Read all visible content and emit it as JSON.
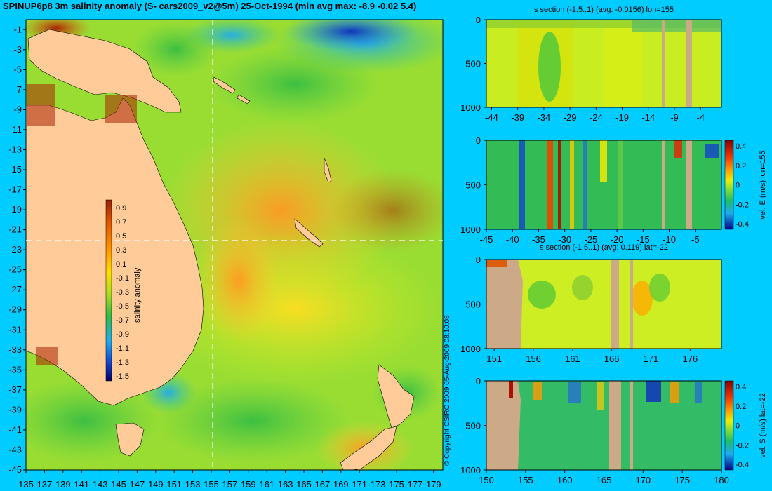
{
  "map": {
    "title": "SPINUP6p8 3m salinity anomaly (S- cars2009_v2@5m) 25-Oct-1994 (min avg max: -8.9 -0.02 5.4)",
    "colorbar_label": "salinity anomaly",
    "colorbar_ticks": [
      "0.9",
      "0.7",
      "0.5",
      "0.3",
      "0.1",
      "-0.1",
      "-0.3",
      "-0.5",
      "-0.7",
      "-0.9",
      "-1.1",
      "-1.3",
      "-1.5"
    ],
    "lon_ticks": [
      "135",
      "137",
      "139",
      "141",
      "143",
      "145",
      "147",
      "149",
      "151",
      "153",
      "155",
      "157",
      "159",
      "161",
      "163",
      "165",
      "167",
      "169",
      "171",
      "173",
      "175",
      "177",
      "179"
    ],
    "lat_ticks": [
      "-1",
      "-3",
      "-5",
      "-7",
      "-9",
      "-11",
      "-13",
      "-15",
      "-17",
      "-19",
      "-21",
      "-23",
      "-25",
      "-27",
      "-29",
      "-31",
      "-33",
      "-35",
      "-37",
      "-39",
      "-41",
      "-43",
      "-45"
    ],
    "section_lon": 155,
    "section_lat": -22
  },
  "copyright": "© Copyright CSIRO 2009   05-Aug-2009 08:10:08",
  "colors": {
    "background": "#00ccff",
    "land": "#ffcc99",
    "section_mask": "#ccaa88"
  },
  "panels": [
    {
      "title": "s section (-1.5..1) (avg: -0.0156) lon=155",
      "y_ticks": [
        "0",
        "500",
        "1000"
      ],
      "x_ticks": [
        "-44",
        "-39",
        "-34",
        "-29",
        "-24",
        "-19",
        "-14",
        "-9",
        "-4"
      ],
      "side_label": "",
      "colorbar_ticks": []
    },
    {
      "title": "",
      "y_ticks": [
        "0",
        "500",
        "1000"
      ],
      "x_ticks": [
        "-45",
        "-40",
        "-35",
        "-30",
        "-25",
        "-20",
        "-15",
        "-10",
        "-5"
      ],
      "side_label": "vel. E (m/s) lon=155",
      "colorbar_ticks": [
        "0.4",
        "0.2",
        "0",
        "-0.2",
        "-0.4"
      ]
    },
    {
      "title": "s section (-1.5..1) (avg: 0.119) lat=-22",
      "y_ticks": [
        "0",
        "500",
        "1000"
      ],
      "x_ticks": [
        "151",
        "156",
        "161",
        "166",
        "171",
        "176"
      ],
      "side_label": "",
      "colorbar_ticks": []
    },
    {
      "title": "",
      "y_ticks": [
        "0",
        "500",
        "1000"
      ],
      "x_ticks": [
        "150",
        "155",
        "160",
        "165",
        "170",
        "175",
        "180"
      ],
      "side_label": "vel. S (m/s) lat=-22",
      "colorbar_ticks": [
        "0.4",
        "0.2",
        "0",
        "-0.2",
        "-0.4"
      ]
    }
  ],
  "chart_data": [
    {
      "type": "heatmap",
      "title": "SPINUP6p8 3m salinity anomaly (S- cars2009_v2@5m) 25-Oct-1994 (min avg max: -8.9 -0.02 5.4)",
      "xlim": [
        135,
        180
      ],
      "ylim": [
        -45,
        0
      ],
      "colorbar": {
        "label": "salinity anomaly",
        "range": [
          -1.5,
          1
        ]
      },
      "min": -8.9,
      "avg": -0.02,
      "max": 5.4
    },
    {
      "type": "heatmap",
      "title": "s section (-1.5..1) (avg: -0.0156) lon=155",
      "xlim": [
        -45,
        0
      ],
      "ylim": [
        1000,
        0
      ],
      "avg": -0.0156,
      "range": [
        -1.5,
        1
      ]
    },
    {
      "type": "heatmap",
      "title": "",
      "xlim": [
        -45,
        0
      ],
      "ylim": [
        1000,
        0
      ],
      "colorbar": {
        "label": "vel. E (m/s) lon=155",
        "range": [
          -0.4,
          0.4
        ]
      }
    },
    {
      "type": "heatmap",
      "title": "s section (-1.5..1) (avg: 0.119) lat=-22",
      "xlim": [
        150,
        180
      ],
      "ylim": [
        1000,
        0
      ],
      "avg": 0.119,
      "range": [
        -1.5,
        1
      ]
    },
    {
      "type": "heatmap",
      "title": "",
      "xlim": [
        150,
        180
      ],
      "ylim": [
        1000,
        0
      ],
      "colorbar": {
        "label": "vel. S (m/s) lat=-22",
        "range": [
          -0.4,
          0.4
        ]
      }
    }
  ]
}
